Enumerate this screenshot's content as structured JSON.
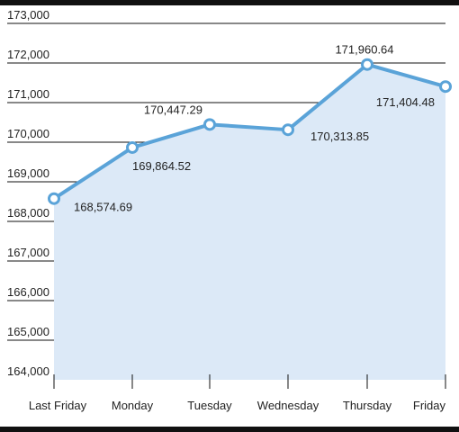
{
  "chart_data": {
    "type": "area",
    "title": "",
    "xlabel": "",
    "ylabel": "",
    "categories": [
      "Last Friday",
      "Monday",
      "Tuesday",
      "Wednesday",
      "Thursday",
      "Friday"
    ],
    "series": [
      {
        "values": [
          168574.69,
          169864.52,
          170447.29,
          170313.85,
          171960.64,
          171404.48
        ],
        "labels": [
          "168,574.69",
          "169,864.52",
          "170,447.29",
          "170,313.85",
          "171,960.64",
          "171,404.48"
        ]
      }
    ],
    "yticks": [
      "164,000",
      "165,000",
      "166,000",
      "167,000",
      "168,000",
      "169,000",
      "170,000",
      "171,000",
      "172,000",
      "173,000"
    ],
    "ylim": [
      164000,
      173000
    ],
    "grid": true,
    "legend": "none",
    "colors": {
      "line": "#5aa3d8",
      "fill": "#dce9f7",
      "marker_fill": "#ffffff",
      "grid": "#111111",
      "frame": "#111111"
    }
  }
}
